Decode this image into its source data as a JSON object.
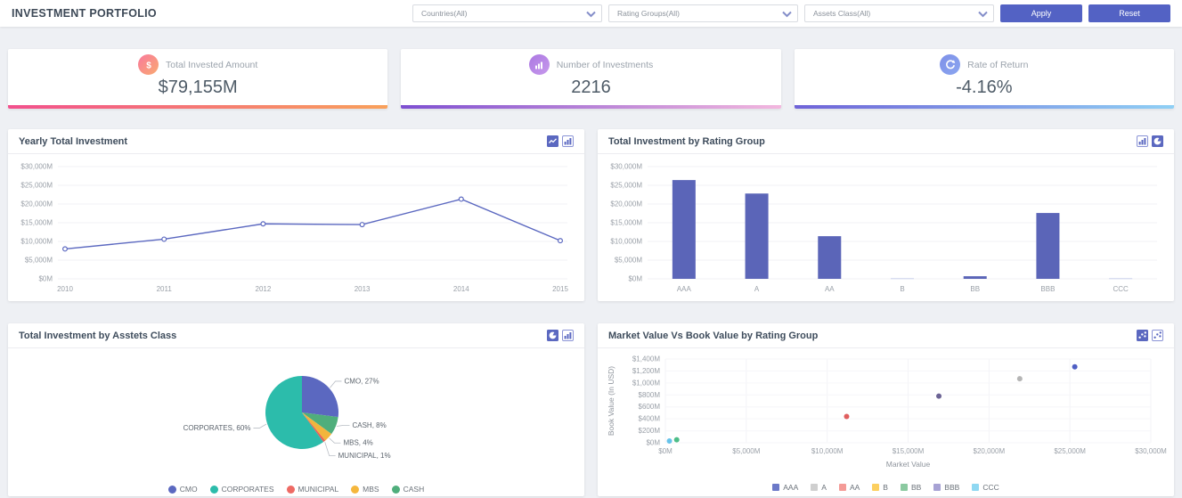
{
  "header": {
    "title": "INVESTMENT PORTFOLIO",
    "filters": [
      {
        "name": "countries",
        "value": "Countries(All)"
      },
      {
        "name": "rating-groups",
        "value": "Rating Groups(All)"
      },
      {
        "name": "assets-class",
        "value": "Assets Class(All)"
      }
    ],
    "apply_label": "Apply",
    "reset_label": "Reset",
    "accent_color": "#5362c4"
  },
  "kpis": [
    {
      "label": "Total Invested Amount",
      "value": "$79,155M",
      "icon": "dollar-icon",
      "icon_gradient": [
        "#f9799c",
        "#f9aa71"
      ],
      "bar_gradient": [
        "#f2508d",
        "#f9a15b"
      ]
    },
    {
      "label": "Number of Investments",
      "value": "2216",
      "icon": "bar-chart-icon",
      "icon_gradient": [
        "#ab77e2",
        "#c79aec"
      ],
      "bar_gradient": [
        "#7d4fd1",
        "#f3b7de"
      ]
    },
    {
      "label": "Rate of Return",
      "value": "-4.16%",
      "icon": "refresh-icon",
      "icon_gradient": [
        "#7e90e8",
        "#8ba6f0"
      ],
      "bar_gradient": [
        "#6f63d8",
        "#8fd0f5"
      ]
    }
  ],
  "panels": [
    {
      "title": "Yearly Total Investment",
      "icons": [
        "line-chart-icon-filled",
        "bar-chart-icon-outline"
      ],
      "chart_data": {
        "type": "line",
        "x": [
          "2010",
          "2011",
          "2012",
          "2013",
          "2014",
          "2015"
        ],
        "series": [
          {
            "name": "Yearly Total Investment",
            "values": [
              8000,
              10600,
              14700,
              14500,
              21300,
              10200
            ]
          }
        ],
        "ylim": [
          0,
          30000
        ],
        "ytick": 5000,
        "line_color": "#5b68c0",
        "grid": true
      }
    },
    {
      "title": "Total Investment by Rating Group",
      "icons": [
        "bar-chart-icon-outline",
        "pie-chart-icon-filled"
      ],
      "chart_data": {
        "type": "bar",
        "categories": [
          "AAA",
          "A",
          "AA",
          "B",
          "BB",
          "BBB",
          "CCC"
        ],
        "values": [
          26400,
          22800,
          11400,
          250,
          700,
          17600,
          250
        ],
        "bar_colors": [
          "#5b65b8",
          "#5b65b8",
          "#5b65b8",
          "#d9ddf1",
          "#5b65b8",
          "#5b65b8",
          "#d9ddf1"
        ],
        "ylim": [
          0,
          30000
        ],
        "ytick": 5000,
        "grid": true
      }
    },
    {
      "title": "Total Investment by Asstets Class",
      "icons": [
        "pie-chart-icon-filled",
        "bar-chart-icon-outline"
      ],
      "chart_data": {
        "type": "pie",
        "slices": [
          {
            "label": "CMO",
            "pct": 27,
            "color": "#5b68c0"
          },
          {
            "label": "CASH",
            "pct": 8,
            "color": "#4fae7c"
          },
          {
            "label": "MBS",
            "pct": 4,
            "color": "#f2b53d"
          },
          {
            "label": "MUNICIPAL",
            "pct": 1,
            "color": "#e8605a"
          },
          {
            "label": "CORPORATES",
            "pct": 60,
            "color": "#2cbcab"
          }
        ],
        "legend": [
          {
            "label": "CMO",
            "color": "#5b68c0"
          },
          {
            "label": "CORPORATES",
            "color": "#2cbcab"
          },
          {
            "label": "MUNICIPAL",
            "color": "#ee6a64"
          },
          {
            "label": "MBS",
            "color": "#f5b73d"
          },
          {
            "label": "CASH",
            "color": "#4fae7c"
          }
        ]
      }
    },
    {
      "title": "Market Value Vs Book Value by Rating Group",
      "icons": [
        "scatter-chart-icon-filled",
        "scatter-chart-icon-outline"
      ],
      "chart_data": {
        "type": "scatter",
        "xlabel": "Market Value",
        "ylabel": "Book Value (In USD)",
        "xlim": [
          0,
          30000
        ],
        "xtick": 5000,
        "ylim": [
          0,
          1400
        ],
        "ytick": 200,
        "points": [
          {
            "series": "AAA",
            "x": 25300,
            "y": 1270,
            "color": "#4f5fc4"
          },
          {
            "series": "A",
            "x": 21900,
            "y": 1070,
            "color": "#b5b5b5"
          },
          {
            "series": "BBB",
            "x": 16900,
            "y": 780,
            "color": "#6b6394"
          },
          {
            "series": "AA",
            "x": 11200,
            "y": 440,
            "color": "#e05e5e"
          },
          {
            "series": "BB",
            "x": 700,
            "y": 50,
            "color": "#4dbd88"
          },
          {
            "series": "CCC",
            "x": 250,
            "y": 30,
            "color": "#67c3ea"
          }
        ],
        "legend": [
          {
            "label": "AAA",
            "color": "#6c79c8"
          },
          {
            "label": "A",
            "color": "#cfcfcf"
          },
          {
            "label": "AA",
            "color": "#f49b97"
          },
          {
            "label": "B",
            "color": "#fccf5f"
          },
          {
            "label": "BB",
            "color": "#8bc9a0"
          },
          {
            "label": "BBB",
            "color": "#a7a2d4"
          },
          {
            "label": "CCC",
            "color": "#8fd8f2"
          }
        ]
      }
    }
  ]
}
